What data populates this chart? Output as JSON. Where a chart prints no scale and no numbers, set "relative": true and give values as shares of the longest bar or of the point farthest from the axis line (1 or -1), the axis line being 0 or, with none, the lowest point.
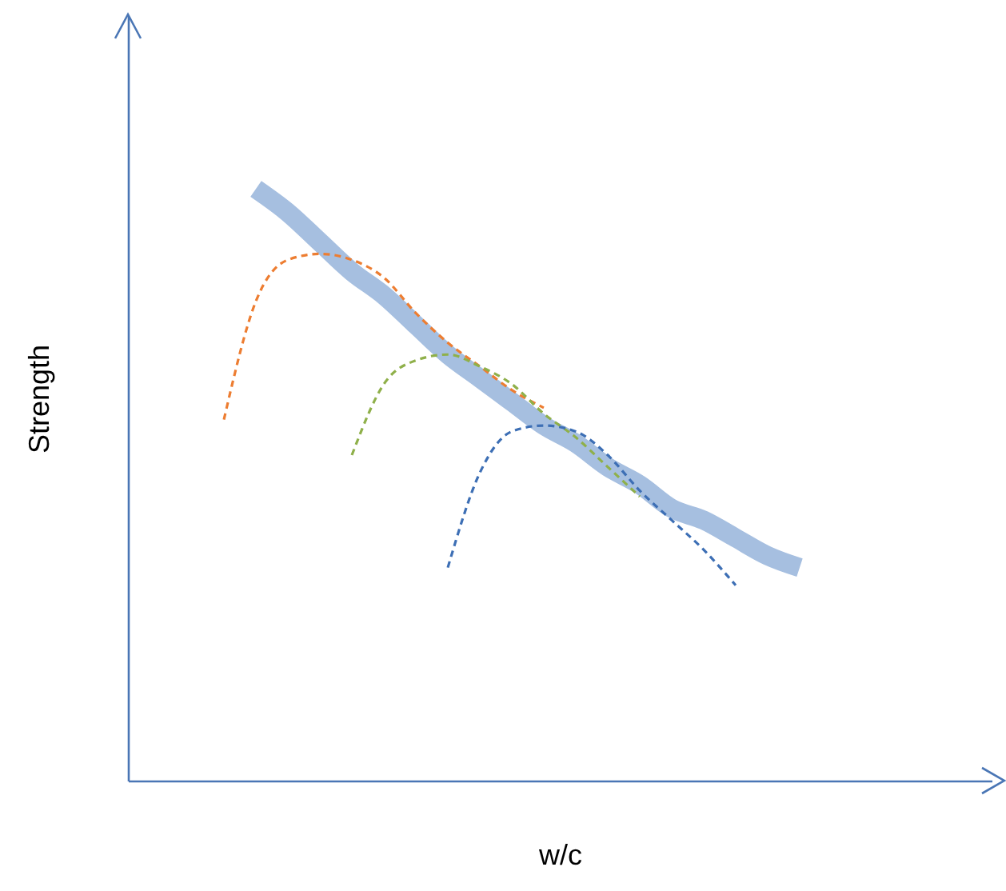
{
  "chart_data": {
    "type": "line",
    "relative": true,
    "xlabel": "w/c",
    "ylabel": "Strength",
    "marker": "none",
    "categories": [
      null,
      null,
      null,
      null,
      null,
      null,
      null,
      null,
      null,
      null,
      null,
      null,
      null,
      null,
      null,
      null,
      null,
      null,
      null,
      null,
      null,
      null,
      null,
      null,
      null,
      null,
      null,
      null
    ],
    "series": [
      {
        "color": "#a6bfe0",
        "line_style": "solid",
        "values": [
          null,
          null,
          null,
          null,
          1.0,
          0.96,
          0.91,
          0.86,
          0.82,
          0.77,
          0.72,
          0.68,
          0.64,
          0.6,
          0.57,
          0.53,
          0.5,
          0.46,
          0.44,
          0.41,
          0.38,
          0.36,
          null,
          null,
          null,
          null,
          null,
          null
        ]
      },
      {
        "color": "#ed7d31",
        "line_style": "dashed",
        "values": [
          null,
          null,
          null,
          0.61,
          0.81,
          0.88,
          0.89,
          0.88,
          0.85,
          0.79,
          0.74,
          0.7,
          0.66,
          0.63,
          null,
          null,
          null,
          null,
          null,
          null,
          null,
          null,
          null,
          null,
          null,
          null,
          null,
          null
        ]
      },
      {
        "color": "#8fb04a",
        "line_style": "dashed",
        "values": [
          null,
          null,
          null,
          null,
          null,
          null,
          null,
          0.55,
          0.67,
          0.71,
          0.72,
          0.7,
          0.67,
          0.62,
          0.58,
          0.53,
          0.48,
          null,
          null,
          null,
          null,
          null,
          null,
          null,
          null,
          null,
          null,
          null
        ]
      },
      {
        "color": "#3d6fb5",
        "line_style": "dashed",
        "values": [
          null,
          null,
          null,
          null,
          null,
          null,
          null,
          null,
          null,
          null,
          0.36,
          0.52,
          0.59,
          0.6,
          0.59,
          0.55,
          0.49,
          0.44,
          0.39,
          0.33,
          null,
          null,
          null,
          null,
          null,
          null,
          null,
          null
        ]
      }
    ]
  }
}
